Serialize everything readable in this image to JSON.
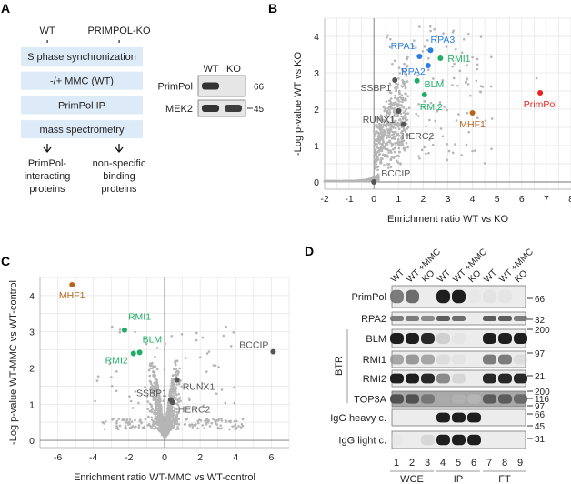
{
  "panelA": {
    "label": "A",
    "wt": "WT",
    "ko": "PRIMPOL-KO",
    "steps": [
      "S phase synchronization",
      "-/+ MMC (WT)",
      "PrimPol IP",
      "mass spectrometry"
    ],
    "outcome_left": [
      "PrimPol-",
      "interacting",
      "proteins"
    ],
    "outcome_right": [
      "non-specific",
      "binding",
      "proteins"
    ],
    "outcome_left_color": "#4a76a8",
    "outcome_right_color": "#e8953a",
    "box_color": "#ddeaf8",
    "blot": {
      "lanes": [
        "WT",
        "KO"
      ],
      "rows": [
        {
          "name": "PrimPol",
          "mw": "66",
          "bands": [
            0.9,
            0.0
          ]
        },
        {
          "name": "MEK2",
          "mw": "45",
          "bands": [
            0.9,
            0.85
          ]
        }
      ]
    }
  },
  "chart_data": [
    {
      "panel": "B",
      "type": "scatter",
      "xlabel": "Enrichment ratio WT vs KO",
      "ylabel": "-Log p-value WT vs KO",
      "xlim": [
        -2,
        8
      ],
      "ylim": [
        -0.2,
        4.5
      ],
      "xticks": [
        "-2",
        "-1",
        "0",
        "1",
        "2",
        "3",
        "4",
        "5",
        "6",
        "7",
        "8"
      ],
      "yticks": [
        "0",
        "1",
        "2",
        "3",
        "4"
      ],
      "grid": true,
      "labeled_points": [
        {
          "name": "RPA3",
          "x": 2.3,
          "y": 3.62,
          "color": "#2a7de1"
        },
        {
          "name": "RPA1",
          "x": 1.85,
          "y": 3.45,
          "color": "#2a7de1"
        },
        {
          "name": "RPA2",
          "x": 2.2,
          "y": 3.2,
          "color": "#2a7de1"
        },
        {
          "name": "RMI1",
          "x": 2.7,
          "y": 3.4,
          "color": "#21ad66"
        },
        {
          "name": "BLM",
          "x": 1.75,
          "y": 2.78,
          "color": "#21ad66"
        },
        {
          "name": "RMI2",
          "x": 2.05,
          "y": 2.4,
          "color": "#21ad66"
        },
        {
          "name": "SSBP1",
          "x": 0.85,
          "y": 2.8,
          "color": "#555555"
        },
        {
          "name": "RUNX1",
          "x": 1.0,
          "y": 1.95,
          "color": "#555555"
        },
        {
          "name": "HERC2",
          "x": 1.2,
          "y": 1.58,
          "color": "#555555"
        },
        {
          "name": "BCCIP",
          "x": 0.0,
          "y": 0.0,
          "color": "#555555"
        },
        {
          "name": "MHF1",
          "x": 4.0,
          "y": 1.9,
          "color": "#b8651b"
        },
        {
          "name": "PrimPol",
          "x": 6.75,
          "y": 2.45,
          "color": "#e52420"
        }
      ],
      "background_color": "#b5b5b5"
    },
    {
      "panel": "C",
      "type": "scatter",
      "xlabel": "Enrichment ratio WT-MMC vs WT-control",
      "ylabel": "-Log p-value WT-MMC vs WT-control",
      "xlim": [
        -7,
        7
      ],
      "ylim": [
        -0.2,
        4.5
      ],
      "xticks": [
        "-6",
        "-4",
        "-2",
        "0",
        "2",
        "4",
        "6"
      ],
      "yticks": [
        "0",
        "1",
        "2",
        "3",
        "4"
      ],
      "grid": true,
      "labeled_points": [
        {
          "name": "MHF1",
          "x": -5.2,
          "y": 4.3,
          "color": "#b8651b"
        },
        {
          "name": "RMI1",
          "x": -2.25,
          "y": 3.05,
          "color": "#21ad66"
        },
        {
          "name": "BLM",
          "x": -1.4,
          "y": 2.43,
          "color": "#21ad66"
        },
        {
          "name": "RMI2",
          "x": -1.75,
          "y": 2.4,
          "color": "#21ad66"
        },
        {
          "name": "BCCIP",
          "x": 6.1,
          "y": 2.45,
          "color": "#555555"
        },
        {
          "name": "RUNX1",
          "x": 0.7,
          "y": 1.67,
          "color": "#555555"
        },
        {
          "name": "SSBP1",
          "x": 0.35,
          "y": 1.12,
          "color": "#555555"
        },
        {
          "name": "HERC2",
          "x": 0.45,
          "y": 1.05,
          "color": "#555555"
        }
      ],
      "background_color": "#b5b5b5"
    }
  ],
  "panelB": {
    "label": "B"
  },
  "panelC": {
    "label": "C"
  },
  "panelD": {
    "label": "D",
    "lane_headers": [
      "WT",
      "WT +MMC",
      "KO",
      "WT",
      "WT +MMC",
      "KO",
      "WT",
      "WT +MMC",
      "KO"
    ],
    "lane_numbers": [
      "1",
      "2",
      "3",
      "4",
      "5",
      "6",
      "7",
      "8",
      "9"
    ],
    "groups": [
      "WCE",
      "IP",
      "FT"
    ],
    "bracket_label": "BTR",
    "rows": [
      {
        "name": "PrimPol",
        "color": "#222222",
        "mw": [
          "66"
        ],
        "bands": [
          0.6,
          0.65,
          0,
          1,
          1,
          0.05,
          0.1,
          0.08,
          0
        ]
      },
      {
        "name": "RPA2",
        "color": "#222222",
        "mw": [
          "32"
        ],
        "bands": [
          0.6,
          0.6,
          0.55,
          0.7,
          0.65,
          0,
          0.7,
          0.7,
          0.6
        ]
      },
      {
        "name": "BLM",
        "color": "#222222",
        "mw": [
          "200"
        ],
        "bands": [
          1,
          1,
          0.95,
          0.25,
          0.08,
          0,
          1,
          1,
          1
        ]
      },
      {
        "name": "RMI1",
        "color": "#222222",
        "mw": [
          "97"
        ],
        "bands": [
          0.45,
          0.5,
          0.45,
          0.15,
          0.1,
          0,
          0.6,
          0.6,
          0.15
        ]
      },
      {
        "name": "RMI2",
        "color": "#2f5f8f",
        "mw": [
          "21"
        ],
        "bands": [
          1,
          1,
          0.95,
          0.55,
          0.2,
          0,
          0.95,
          0.95,
          0.95
        ]
      },
      {
        "name": "TOP3A",
        "color": "#2f5f8f",
        "mw": [
          "200",
          "116",
          "97"
        ],
        "bands": [
          0.75,
          0.75,
          0.6,
          0.3,
          0.25,
          0.2,
          0.7,
          0.7,
          0.65
        ]
      },
      {
        "name": "IgG heavy c.",
        "color": "#222222",
        "mw": [
          "66",
          "45"
        ],
        "bands": [
          0,
          0,
          0,
          1,
          1,
          1,
          0,
          0,
          0
        ]
      },
      {
        "name": "IgG light c.",
        "color": "#2f5f8f",
        "mw": [
          "31"
        ],
        "bands": [
          0.05,
          0,
          0.2,
          1,
          1,
          1,
          0,
          0,
          0
        ]
      }
    ]
  }
}
